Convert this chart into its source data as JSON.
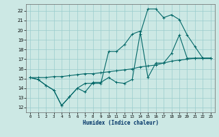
{
  "xlabel": "Humidex (Indice chaleur)",
  "bg_color": "#cce8e4",
  "grid_color": "#99cccc",
  "line_color": "#006666",
  "xlim": [
    -0.5,
    23.5
  ],
  "ylim": [
    11.5,
    22.7
  ],
  "xticks": [
    0,
    1,
    2,
    3,
    4,
    5,
    6,
    7,
    8,
    9,
    10,
    11,
    12,
    13,
    14,
    15,
    16,
    17,
    18,
    19,
    20,
    21,
    22,
    23
  ],
  "yticks": [
    12,
    13,
    14,
    15,
    16,
    17,
    18,
    19,
    20,
    21,
    22
  ],
  "line1_x": [
    0,
    1,
    2,
    3,
    4,
    5,
    6,
    7,
    8,
    9,
    10,
    11,
    12,
    13,
    14,
    15,
    16,
    17,
    18,
    19,
    20,
    21,
    22,
    23
  ],
  "line1_y": [
    15.1,
    14.9,
    14.3,
    13.8,
    12.2,
    13.1,
    14.0,
    13.6,
    14.6,
    14.6,
    15.1,
    14.6,
    14.5,
    14.9,
    19.6,
    22.2,
    22.2,
    21.3,
    21.6,
    21.1,
    19.5,
    18.3,
    17.1,
    17.1
  ],
  "line2_x": [
    0,
    1,
    2,
    3,
    4,
    5,
    6,
    7,
    8,
    9,
    10,
    11,
    12,
    13,
    14,
    15,
    16,
    17,
    18,
    19,
    20,
    21,
    22,
    23
  ],
  "line2_y": [
    15.1,
    14.9,
    14.3,
    13.8,
    12.2,
    13.1,
    14.0,
    14.5,
    14.5,
    14.5,
    17.8,
    17.8,
    18.5,
    19.6,
    19.9,
    15.1,
    16.6,
    16.6,
    17.6,
    19.5,
    17.1,
    17.1,
    17.1,
    17.1
  ],
  "line3_x": [
    0,
    1,
    2,
    3,
    4,
    5,
    6,
    7,
    8,
    9,
    10,
    11,
    12,
    13,
    14,
    15,
    16,
    17,
    18,
    19,
    20,
    21,
    22,
    23
  ],
  "line3_y": [
    15.1,
    15.1,
    15.1,
    15.2,
    15.2,
    15.3,
    15.4,
    15.5,
    15.5,
    15.6,
    15.7,
    15.8,
    15.9,
    16.0,
    16.2,
    16.3,
    16.4,
    16.6,
    16.8,
    16.9,
    17.0,
    17.1,
    17.1,
    17.1
  ]
}
